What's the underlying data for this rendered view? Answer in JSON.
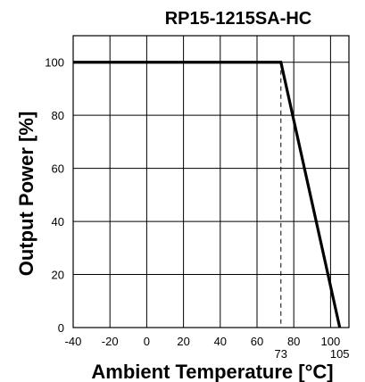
{
  "chart_data": {
    "type": "line",
    "title": "RP15-1215SA-HC",
    "xlabel": "Ambient Temperature [°C]",
    "ylabel": "Output Power [%]",
    "xlim": [
      -40,
      110
    ],
    "ylim": [
      0,
      110
    ],
    "x_ticks": [
      -40,
      -20,
      0,
      20,
      40,
      60,
      80,
      100
    ],
    "y_ticks": [
      0,
      20,
      40,
      60,
      80,
      100
    ],
    "grid": true,
    "series": [
      {
        "x": [
          -40,
          73,
          105
        ],
        "y": [
          100,
          100,
          0
        ]
      }
    ],
    "annotations": [
      {
        "label": "73",
        "x": 73,
        "style": "dashed-vertical"
      },
      {
        "label": "105",
        "x": 105
      }
    ]
  }
}
